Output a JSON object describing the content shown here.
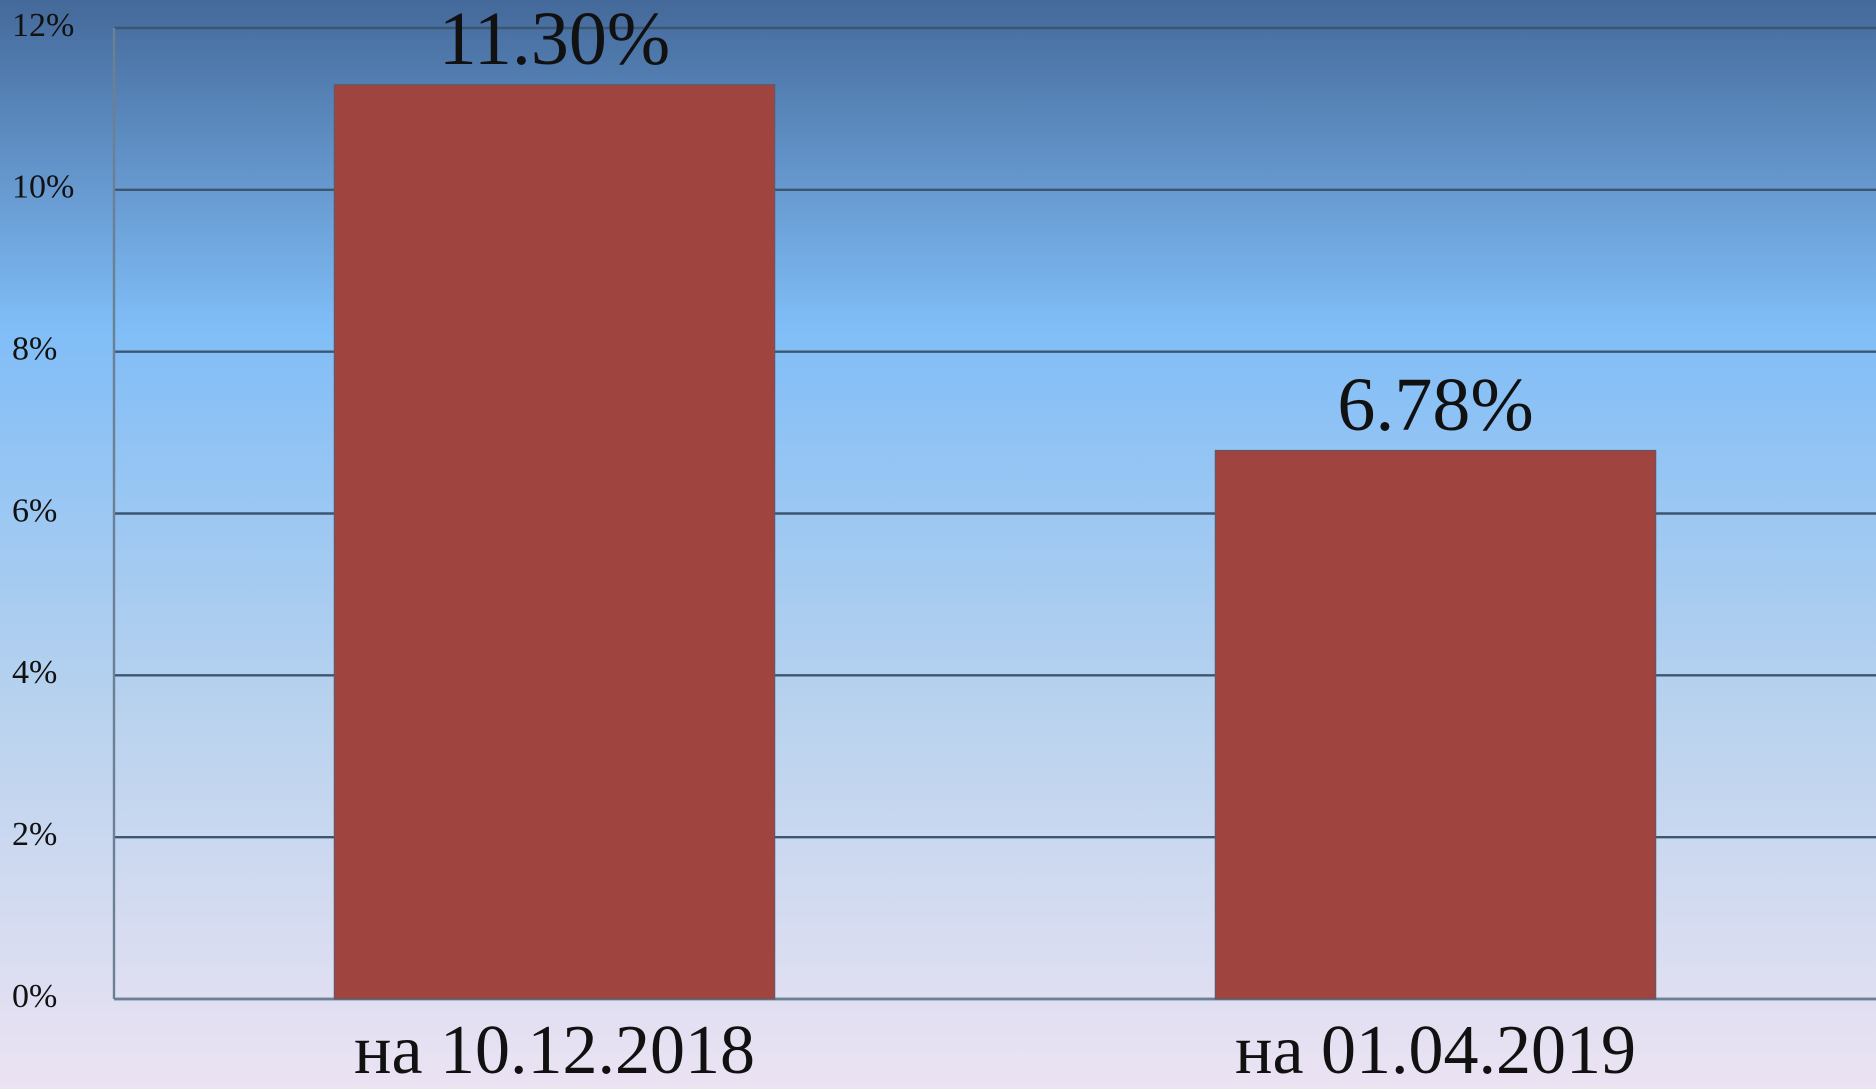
{
  "chart_data": {
    "type": "bar",
    "categories": [
      "на 10.12.2018",
      "на 01.04.2019"
    ],
    "values": [
      11.3,
      6.78
    ],
    "value_labels": [
      "11.30%",
      "6.78%"
    ],
    "color": "#a04440",
    "ylim": [
      0,
      12
    ],
    "yticks": [
      {
        "value": 0,
        "label": "0%"
      },
      {
        "value": 2,
        "label": "2%"
      },
      {
        "value": 4,
        "label": "4%"
      },
      {
        "value": 6,
        "label": "6%"
      },
      {
        "value": 8,
        "label": "8%"
      },
      {
        "value": 10,
        "label": "10%"
      },
      {
        "value": 12,
        "label": "12%"
      }
    ],
    "grid": true
  }
}
